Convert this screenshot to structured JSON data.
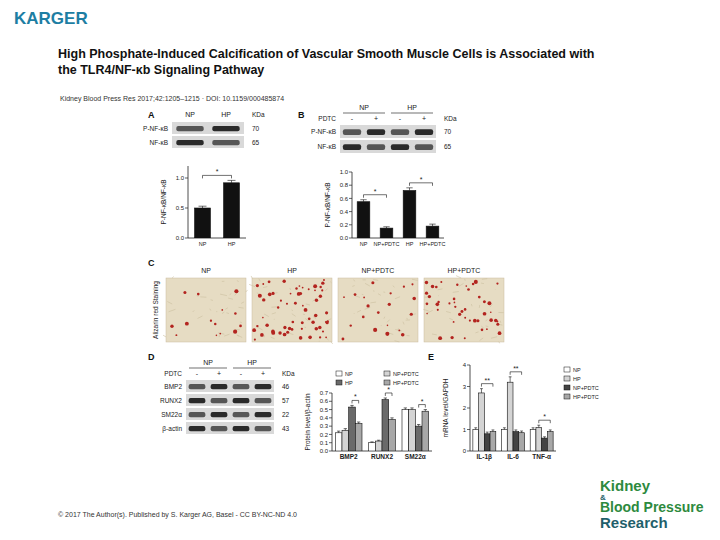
{
  "header": {
    "logo": "KARGER",
    "title_lines": [
      "High Phosphate-Induced Calcification of Vascular Smooth Muscle Cells is Associated with",
      "the TLR4/NF-κb Signaling Pathway"
    ],
    "citation": "Kidney Blood Press Res 2017;42:1205–1215 · DOI: 10.1159/000485874"
  },
  "panels": {
    "letters": [
      "A",
      "B",
      "C",
      "D",
      "E"
    ],
    "blot_a": {
      "lanes": [
        "NP",
        "HP"
      ],
      "unit": "KDa",
      "rows": [
        {
          "label": "P-NF-κB",
          "kda": 70
        },
        {
          "label": "NF-κB",
          "kda": 65
        }
      ]
    },
    "blot_b": {
      "groups": [
        "NP",
        "HP"
      ],
      "treatment": "PDTC",
      "signs": [
        "-",
        "+",
        "-",
        "+"
      ],
      "unit": "KDa",
      "rows": [
        {
          "label": "P-NF-κB",
          "kda": 70
        },
        {
          "label": "NF-κB",
          "kda": 65
        }
      ]
    },
    "staining": {
      "side_label": "Alizarin red Staining",
      "images": [
        "NP",
        "HP",
        "NP+PDTC",
        "HP+PDTC"
      ]
    },
    "blot_d": {
      "groups": [
        "NP",
        "HP"
      ],
      "treatment": "PDTC",
      "signs": [
        "-",
        "+",
        "-",
        "+"
      ],
      "unit": "KDa",
      "rows": [
        {
          "label": "BMP2",
          "kda": 46
        },
        {
          "label": "RUNX2",
          "kda": 57
        },
        {
          "label": "SM22α",
          "kda": 22
        },
        {
          "label": "β-actin",
          "kda": 43
        }
      ]
    }
  },
  "chart_data": [
    {
      "type": "bar",
      "y_label": "P-NF-κB/NF-κB",
      "categories": [
        "NP",
        "HP"
      ],
      "values": [
        0.5,
        0.92
      ],
      "errors": [
        0.03,
        0.04
      ],
      "colors": [
        "#111111",
        "#111111"
      ],
      "ylim": [
        0,
        1.2
      ],
      "yticks": [
        {
          "value": 0,
          "label": "0.0"
        },
        {
          "value": 0.5,
          "label": "0.5"
        },
        {
          "value": 1,
          "label": "1.0"
        }
      ],
      "significance": [
        {
          "text": "*",
          "bars": [
            0,
            1
          ]
        }
      ]
    },
    {
      "type": "bar",
      "y_label": "P-NF-κB/NF-κB",
      "categories": [
        "NP",
        "NP+PDTC",
        "HP",
        "HP+PDTC"
      ],
      "values": [
        0.55,
        0.15,
        0.72,
        0.18
      ],
      "errors": [
        0.03,
        0.02,
        0.04,
        0.03
      ],
      "colors": [
        "#111111",
        "#111111",
        "#111111",
        "#111111"
      ],
      "ylim": [
        0,
        1
      ],
      "yticks": [
        {
          "value": 0,
          "label": "0.0"
        },
        {
          "value": 0.2,
          "label": "0.2"
        },
        {
          "value": 0.4,
          "label": "0.4"
        },
        {
          "value": 0.6,
          "label": "0.6"
        },
        {
          "value": 0.8,
          "label": "0.8"
        },
        {
          "value": 1,
          "label": "1.0"
        }
      ],
      "significance": [
        {
          "text": "*",
          "bars": [
            0,
            1
          ]
        },
        {
          "text": "*",
          "bars": [
            2,
            3
          ]
        }
      ]
    },
    {
      "type": "bar",
      "y_label": "Protein level/β-actin",
      "categories": [
        "BMP2",
        "RUNX2",
        "SM22α"
      ],
      "series": [
        {
          "name": "NP",
          "color": "#ffffff",
          "values": [
            0.22,
            0.1,
            0.5
          ],
          "errors": [
            0.02,
            0.01,
            0.02
          ]
        },
        {
          "name": "NP+PDTC",
          "color": "#d4d4d4",
          "values": [
            0.25,
            0.12,
            0.5
          ],
          "errors": [
            0.02,
            0.01,
            0.02
          ]
        },
        {
          "name": "HP",
          "color": "#6a6a6a",
          "values": [
            0.53,
            0.62,
            0.3
          ],
          "errors": [
            0.02,
            0.02,
            0.02
          ]
        },
        {
          "name": "HP+PDTC",
          "color": "#a8a8a8",
          "values": [
            0.33,
            0.38,
            0.48
          ],
          "errors": [
            0.02,
            0.02,
            0.02
          ]
        }
      ],
      "ylim": [
        0,
        0.7
      ],
      "yticks": [
        {
          "value": 0,
          "label": "0.0"
        },
        {
          "value": 0.1,
          "label": "0.1"
        },
        {
          "value": 0.2,
          "label": "0.2"
        },
        {
          "value": 0.3,
          "label": "0.3"
        },
        {
          "value": 0.4,
          "label": "0.4"
        },
        {
          "value": 0.5,
          "label": "0.5"
        },
        {
          "value": 0.6,
          "label": "0.6"
        },
        {
          "value": 0.7,
          "label": "0.7"
        }
      ],
      "legend": "top",
      "significance": [
        {
          "text": "*",
          "category": 0,
          "series": [
            2,
            3
          ]
        },
        {
          "text": "*",
          "category": 1,
          "series": [
            2,
            3
          ]
        },
        {
          "text": "*",
          "category": 2,
          "series": [
            2,
            3
          ]
        }
      ]
    },
    {
      "type": "bar",
      "y_label": "mRNA level/GAPDH",
      "categories": [
        "IL-1β",
        "IL-6",
        "TNF-α"
      ],
      "series": [
        {
          "name": "NP",
          "color": "#ffffff",
          "values": [
            1,
            1,
            1
          ],
          "errors": [
            0.08,
            0.08,
            0.08
          ]
        },
        {
          "name": "HP",
          "color": "#d4d4d4",
          "values": [
            2.7,
            3.2,
            1.1
          ],
          "errors": [
            0.2,
            0.25,
            0.1
          ]
        },
        {
          "name": "NP+PDTC",
          "color": "#444444",
          "values": [
            0.8,
            0.9,
            0.6
          ],
          "errors": [
            0.08,
            0.08,
            0.06
          ]
        },
        {
          "name": "HP+PDTC",
          "color": "#a8a8a8",
          "values": [
            0.9,
            0.85,
            0.9
          ],
          "errors": [
            0.08,
            0.08,
            0.08
          ]
        }
      ],
      "ylim": [
        0,
        4
      ],
      "yticks": [
        0,
        1,
        2,
        3,
        4
      ],
      "legend": "right",
      "significance": [
        {
          "text": "**",
          "category": 0,
          "series": [
            1,
            3
          ]
        },
        {
          "text": "**",
          "category": 1,
          "series": [
            1,
            3
          ]
        },
        {
          "text": "*",
          "category": 2,
          "series": [
            1,
            3
          ]
        }
      ]
    }
  ],
  "footer": {
    "copyright": "© 2017 The Author(s). Published by S. Karger AG, Basel - CC BY-NC-ND 4.0",
    "journal": [
      "Kidney",
      "&",
      "Blood Pressure",
      "Research"
    ]
  }
}
